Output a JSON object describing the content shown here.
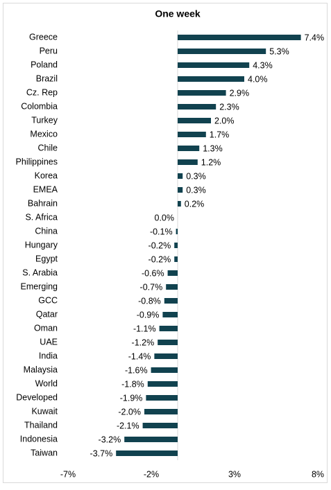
{
  "chart_data": {
    "type": "barh",
    "title": "One week",
    "categories": [
      "Greece",
      "Peru",
      "Poland",
      "Brazil",
      "Cz. Rep",
      "Colombia",
      "Turkey",
      "Mexico",
      "Chile",
      "Philippines",
      "Korea",
      "EMEA",
      "Bahrain",
      "S. Africa",
      "China",
      "Hungary",
      "Egypt",
      "S. Arabia",
      "Emerging",
      "GCC",
      "Qatar",
      "Oman",
      "UAE",
      "India",
      "Malaysia",
      "World",
      "Developed",
      "Kuwait",
      "Thailand",
      "Indonesia",
      "Taiwan"
    ],
    "values": [
      7.4,
      5.3,
      4.3,
      4.0,
      2.9,
      2.3,
      2.0,
      1.7,
      1.3,
      1.2,
      0.3,
      0.3,
      0.2,
      0.0,
      -0.1,
      -0.2,
      -0.2,
      -0.6,
      -0.7,
      -0.8,
      -0.9,
      -1.1,
      -1.2,
      -1.4,
      -1.6,
      -1.8,
      -1.9,
      -2.0,
      -2.1,
      -3.2,
      -3.7
    ],
    "value_labels": [
      "7.4%",
      "5.3%",
      "4.3%",
      "4.0%",
      "2.9%",
      "2.3%",
      "2.0%",
      "1.7%",
      "1.3%",
      "1.2%",
      "0.3%",
      "0.3%",
      "0.2%",
      "0.0%",
      "-0.1%",
      "-0.2%",
      "-0.2%",
      "-0.6%",
      "-0.7%",
      "-0.8%",
      "-0.9%",
      "-1.1%",
      "-1.2%",
      "-1.4%",
      "-1.6%",
      "-1.8%",
      "-1.9%",
      "-2.0%",
      "-2.1%",
      "-3.2%",
      "-3.7%"
    ],
    "color": "#11424f",
    "xlim": [
      -7,
      8
    ],
    "xticks": [
      {
        "value": -7,
        "label": "-7%"
      },
      {
        "value": -2,
        "label": "-2%"
      },
      {
        "value": 3,
        "label": "3%"
      },
      {
        "value": 8,
        "label": "8%"
      }
    ]
  }
}
